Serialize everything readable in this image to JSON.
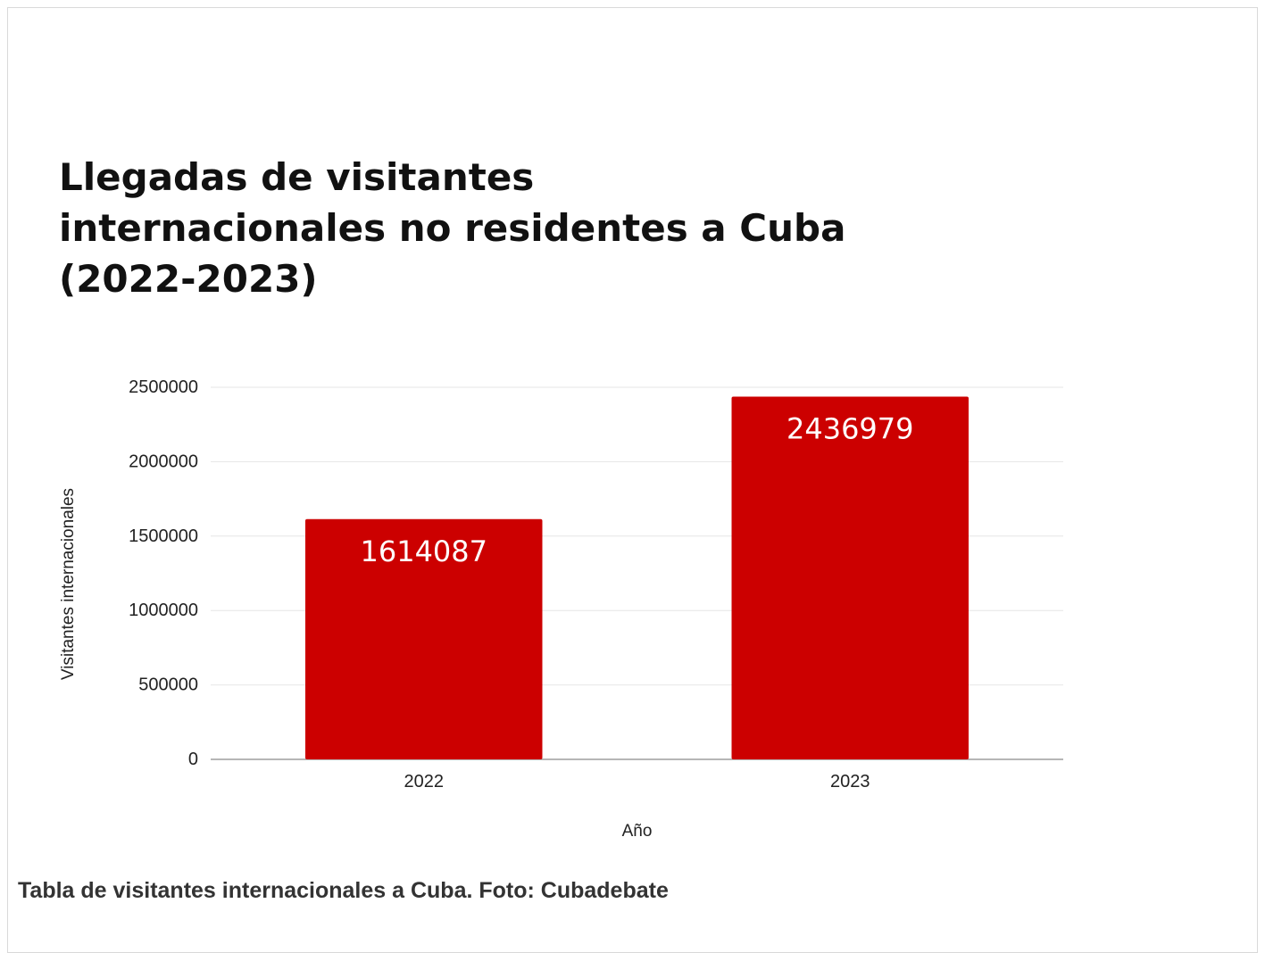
{
  "chart_data": {
    "type": "bar",
    "title_lines": [
      "Llegadas de visitantes",
      "internacionales no residentes a Cuba",
      "(2022-2023)"
    ],
    "categories": [
      "2022",
      "2023"
    ],
    "values": [
      1614087,
      2436979
    ],
    "data_labels": [
      "1614087",
      "2436979"
    ],
    "xlabel": "Año",
    "ylabel": "Visitantes internacionales",
    "ylim": [
      0,
      2500000
    ],
    "yticks": [
      0,
      500000,
      1000000,
      1500000,
      2000000,
      2500000
    ],
    "ytick_labels": [
      "0",
      "500000",
      "1000000",
      "1500000",
      "2000000",
      "2500000"
    ],
    "grid": true,
    "legend": "none",
    "bar_color": "#cc0000",
    "data_label_color": "#ffffff"
  },
  "caption": "Tabla de visitantes internacionales a Cuba. Foto: Cubadebate"
}
